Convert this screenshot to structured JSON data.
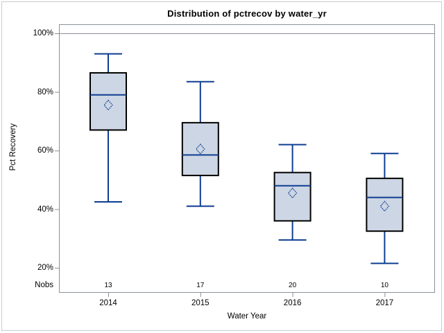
{
  "chart_data": {
    "type": "boxplot",
    "title": "Distribution of pctrecov by water_yr",
    "xlabel": "Water Year",
    "ylabel": "Pct Recovery",
    "nobs_label": "Nobs",
    "categories": [
      "2014",
      "2015",
      "2016",
      "2017"
    ],
    "ytick_values": [
      100,
      80,
      60,
      40,
      20
    ],
    "ytick_labels": [
      "100%",
      "80%",
      "60%",
      "40%",
      "20%"
    ],
    "ylim": [
      18,
      103
    ],
    "refline": 100,
    "legend_position": "none",
    "grid": false,
    "series": [
      {
        "category": "2014",
        "nobs": "13",
        "whisker_low": 42.5,
        "q1": 67,
        "median": 79,
        "q3": 86.5,
        "whisker_high": 93,
        "mean": 75.5
      },
      {
        "category": "2015",
        "nobs": "17",
        "whisker_low": 41,
        "q1": 51.5,
        "median": 58.5,
        "q3": 69.5,
        "whisker_high": 83.5,
        "mean": 60.5
      },
      {
        "category": "2016",
        "nobs": "20",
        "whisker_low": 29.5,
        "q1": 36,
        "median": 48,
        "q3": 52.5,
        "whisker_high": 62,
        "mean": 45.5
      },
      {
        "category": "2017",
        "nobs": "10",
        "whisker_low": 21.5,
        "q1": 32.5,
        "median": 44,
        "q3": 50.5,
        "whisker_high": 59,
        "mean": 41
      }
    ],
    "colors": {
      "box_fill": "#cdd6e4",
      "box_border": "#000000",
      "stat_line": "#0e3d91",
      "frame_line": "#8a9097",
      "outer_border": "#c9cbcf",
      "text": "#000000"
    }
  }
}
